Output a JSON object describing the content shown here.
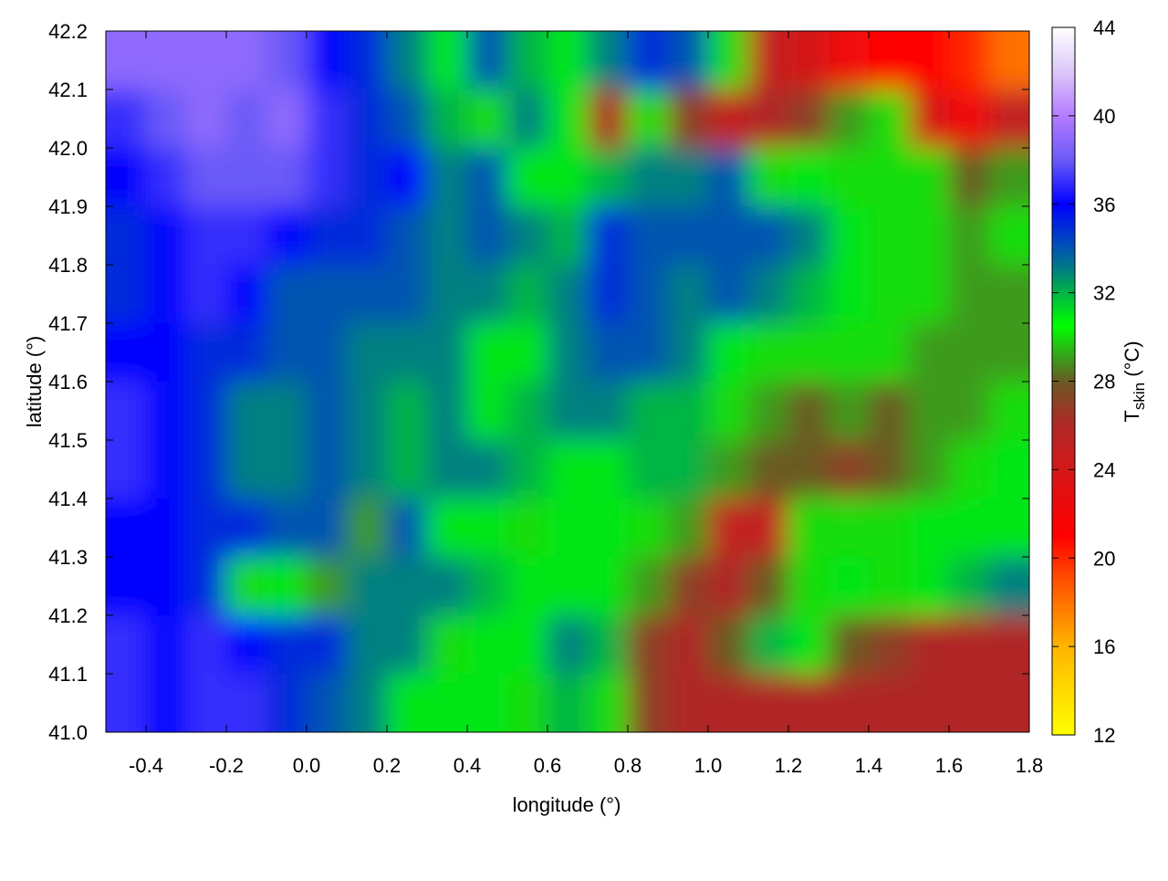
{
  "chart_data": {
    "type": "heatmap",
    "xlabel": "longitude (°)",
    "ylabel": "latitude (°)",
    "colorbar_label": "T",
    "colorbar_label_sub": "skin",
    "colorbar_label_unit": " (°C)",
    "xlim": [
      -0.5,
      1.8
    ],
    "ylim": [
      41.0,
      42.2
    ],
    "zlim": [
      12,
      44
    ],
    "x_ticks": [
      "-0.4",
      "-0.2",
      "0.0",
      "0.2",
      "0.4",
      "0.6",
      "0.8",
      "1.0",
      "1.2",
      "1.4",
      "1.6",
      "1.8"
    ],
    "y_ticks": [
      "41.0",
      "41.1",
      "41.2",
      "41.3",
      "41.4",
      "41.5",
      "41.6",
      "41.7",
      "41.8",
      "41.9",
      "42.0",
      "42.1",
      "42.2"
    ],
    "colorbar_ticks": [
      "12",
      "16",
      "20",
      "24",
      "28",
      "32",
      "36",
      "40",
      "44"
    ],
    "colormap": [
      {
        "value": 12,
        "color": "#ffff00"
      },
      {
        "value": 16,
        "color": "#ffb400"
      },
      {
        "value": 19,
        "color": "#ff5000"
      },
      {
        "value": 21,
        "color": "#ff0000"
      },
      {
        "value": 24,
        "color": "#d41818"
      },
      {
        "value": 26,
        "color": "#b02828"
      },
      {
        "value": 28,
        "color": "#6a5a24"
      },
      {
        "value": 29,
        "color": "#3c9a1c"
      },
      {
        "value": 30.5,
        "color": "#00ff00"
      },
      {
        "value": 32,
        "color": "#00b444"
      },
      {
        "value": 33,
        "color": "#008080"
      },
      {
        "value": 34.5,
        "color": "#0040c8"
      },
      {
        "value": 36,
        "color": "#0000ff"
      },
      {
        "value": 38,
        "color": "#6a5af8"
      },
      {
        "value": 40,
        "color": "#b47cff"
      },
      {
        "value": 42,
        "color": "#dcc8f8"
      },
      {
        "value": 44,
        "color": "#ffffff"
      }
    ],
    "grid_lon": [
      -0.45,
      -0.35,
      -0.25,
      -0.15,
      -0.05,
      0.05,
      0.15,
      0.25,
      0.35,
      0.45,
      0.55,
      0.65,
      0.75,
      0.85,
      0.95,
      1.05,
      1.15,
      1.25,
      1.35,
      1.45,
      1.55,
      1.65,
      1.75
    ],
    "grid_lat": [
      42.15,
      42.05,
      41.95,
      41.85,
      41.75,
      41.65,
      41.55,
      41.45,
      41.35,
      41.25,
      41.15,
      41.05
    ],
    "values": [
      [
        39,
        39,
        39,
        39,
        38,
        36,
        35,
        33,
        31,
        34,
        32,
        31,
        33,
        35,
        34,
        30,
        25,
        24,
        22,
        21,
        21,
        20,
        18
      ],
      [
        37,
        38,
        39,
        38,
        39,
        37,
        35,
        34,
        32,
        30,
        33,
        31,
        26,
        30,
        27,
        25,
        26,
        27,
        29,
        30,
        24,
        22,
        25
      ],
      [
        36,
        37,
        38,
        38,
        38,
        37,
        35,
        36,
        33,
        34,
        31,
        31,
        32,
        33,
        33,
        34,
        30,
        31,
        30,
        30,
        30,
        28,
        29
      ],
      [
        35,
        36,
        37,
        37,
        36,
        35,
        35,
        34,
        33,
        34,
        33,
        32,
        35,
        34,
        34,
        34,
        34,
        33,
        31,
        30,
        30,
        29,
        30
      ],
      [
        35,
        36,
        37,
        36,
        34,
        34,
        34,
        34,
        33,
        33,
        32,
        33,
        35,
        34,
        33,
        34,
        33,
        32,
        31,
        30,
        30,
        29,
        29
      ],
      [
        36,
        36,
        35,
        35,
        34,
        34,
        33,
        33,
        33,
        31,
        31,
        33,
        34,
        34,
        33,
        31,
        30,
        30,
        30,
        30,
        29,
        29,
        29
      ],
      [
        37,
        36,
        35,
        33,
        33,
        34,
        33,
        32,
        33,
        31,
        32,
        33,
        33,
        32,
        32,
        30,
        29,
        28,
        29,
        28,
        29,
        29,
        30
      ],
      [
        37,
        36,
        35,
        33,
        33,
        34,
        33,
        32,
        33,
        33,
        32,
        31,
        31,
        32,
        32,
        29,
        28,
        28,
        27,
        28,
        29,
        30,
        31
      ],
      [
        36,
        36,
        35,
        35,
        34,
        34,
        29,
        34,
        31,
        31,
        30,
        31,
        31,
        30,
        29,
        25,
        25,
        30,
        30,
        30,
        31,
        31,
        31
      ],
      [
        36,
        36,
        35,
        30,
        31,
        29,
        33,
        33,
        33,
        32,
        31,
        31,
        31,
        29,
        27,
        26,
        28,
        30,
        31,
        30,
        31,
        32,
        33
      ],
      [
        37,
        36,
        37,
        36,
        35,
        35,
        33,
        33,
        30,
        31,
        31,
        33,
        32,
        27,
        26,
        28,
        32,
        31,
        28,
        27,
        26,
        26,
        26
      ],
      [
        37,
        36,
        37,
        37,
        35,
        34,
        33,
        31,
        31,
        31,
        30,
        32,
        30,
        27,
        26,
        26,
        26,
        26,
        26,
        26,
        26,
        26,
        26
      ]
    ]
  }
}
